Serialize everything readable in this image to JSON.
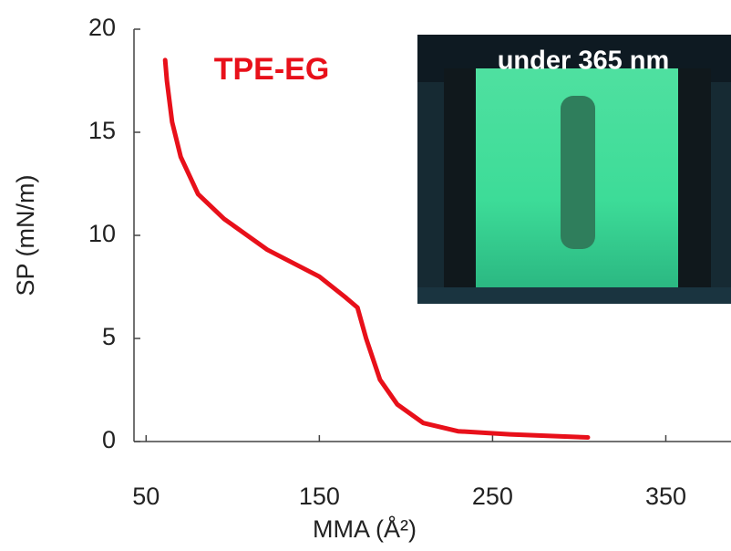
{
  "chart_data": {
    "type": "line",
    "x_label": "MMA (Å²)",
    "y_label": "SP (mN/m)",
    "annotations": [
      "TPE-EG",
      "under 365 nm"
    ],
    "series": [
      {
        "name": "TPE-EG",
        "color": "#e8101a",
        "x": [
          61,
          62,
          65,
          70,
          80,
          95,
          120,
          150,
          165,
          172,
          177,
          185,
          195,
          210,
          230,
          260,
          290,
          305
        ],
        "values": [
          18.5,
          17.5,
          15.5,
          13.8,
          12,
          10.8,
          9.3,
          8,
          7,
          6.5,
          5,
          3,
          1.8,
          0.9,
          0.5,
          0.35,
          0.25,
          0.2
        ]
      }
    ],
    "xlim": [
      43,
      395
    ],
    "ylim": [
      0,
      20
    ],
    "xticks": [
      50,
      150,
      250,
      350
    ],
    "yticks": [
      0,
      5,
      10,
      15,
      20
    ]
  }
}
